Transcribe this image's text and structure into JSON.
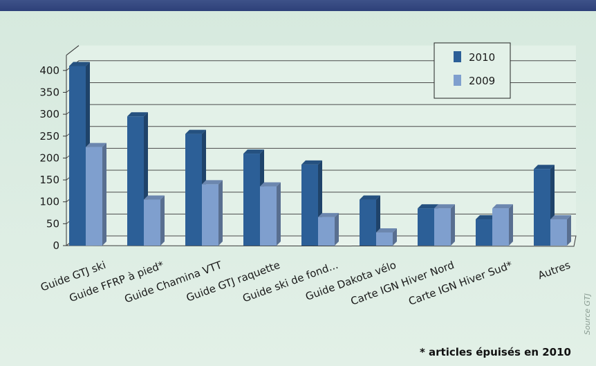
{
  "chart_data": {
    "type": "bar",
    "categories": [
      "Guide GTJ ski",
      "Guide FFRP à pied*",
      "Guide Chamina VTT",
      "Guide GTJ raquette",
      "Guide ski de fond...",
      "Guide Dakota vélo",
      "Carte IGN Hiver Nord",
      "Carte IGN Hiver Sud*",
      "Autres"
    ],
    "series": [
      {
        "name": "2010",
        "values": [
          410,
          295,
          255,
          210,
          185,
          105,
          85,
          60,
          175
        ],
        "color": "#2c5f97"
      },
      {
        "name": "2009",
        "values": [
          225,
          105,
          140,
          135,
          65,
          30,
          85,
          85,
          60
        ],
        "color": "#7f9fce"
      }
    ],
    "ylim": [
      0,
      400
    ],
    "yticks": [
      "0",
      "50",
      "100",
      "150",
      "200",
      "250",
      "300",
      "350",
      "400"
    ],
    "grid": true,
    "legend_position": "top-right",
    "style": "3d"
  },
  "footnote": "* articles épuisés en 2010",
  "source": "Source GTJ"
}
